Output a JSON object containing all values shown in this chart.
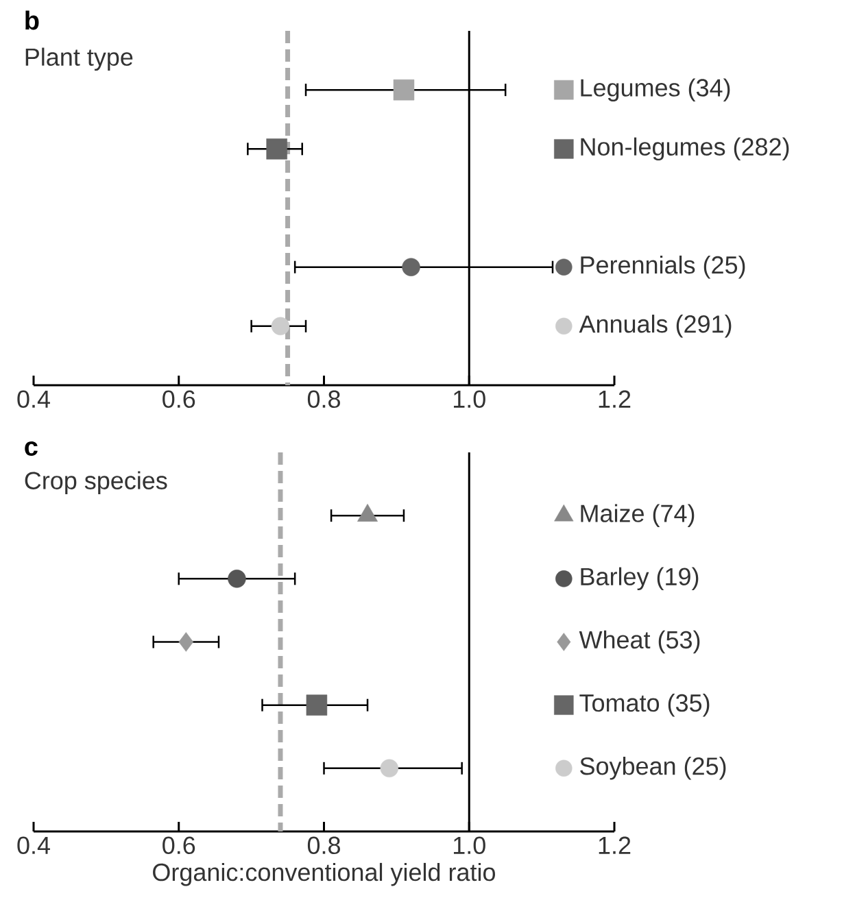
{
  "chart_data": [
    {
      "type": "scatter",
      "orientation": "horizontal",
      "title": "b",
      "subtitle": "Plant type",
      "categories": [
        null,
        null,
        null,
        null,
        null
      ],
      "xlim": [
        0.4,
        1.2
      ],
      "xticks": [
        0.4,
        0.6,
        0.8,
        {
          "value": 1,
          "label": "1.0"
        },
        1.2
      ],
      "tick_labels": "x",
      "legend": "right",
      "ref_lines": [
        {
          "axis": "x",
          "value": 0.75,
          "color": "#aaaaaa",
          "line_style": "dashed"
        },
        {
          "axis": "x",
          "value": 1,
          "color": "#000000",
          "line_style": "solid"
        }
      ],
      "series": [
        {
          "name": "Legumes (34)",
          "color": "#a6a6a6",
          "marker": "square",
          "values": [
            0.91,
            null,
            null,
            null,
            null
          ],
          "errors": [
            [
              0.775,
              1.05
            ],
            null,
            null,
            null,
            null
          ]
        },
        {
          "name": "Non-legumes (282)",
          "color": "#666666",
          "marker": "square",
          "values": [
            null,
            0.735,
            null,
            null,
            null
          ],
          "errors": [
            null,
            [
              0.695,
              0.77
            ],
            null,
            null,
            null
          ]
        },
        {
          "name": "Perennials (25)",
          "color": "#666666",
          "marker": "circle",
          "values": [
            null,
            null,
            null,
            0.92,
            null
          ],
          "errors": [
            null,
            null,
            null,
            [
              0.76,
              1.115
            ],
            null
          ]
        },
        {
          "name": "Annuals (291)",
          "color": "#cccccc",
          "marker": "circle",
          "values": [
            null,
            null,
            null,
            null,
            0.74
          ],
          "errors": [
            null,
            null,
            null,
            null,
            [
              0.7,
              0.775
            ]
          ]
        }
      ]
    },
    {
      "type": "scatter",
      "orientation": "horizontal",
      "title": "c",
      "subtitle": "Crop species",
      "xlabel": "Organic:conventional yield ratio",
      "categories": [
        null,
        null,
        null,
        null,
        null
      ],
      "xlim": [
        0.4,
        1.2
      ],
      "xticks": [
        0.4,
        0.6,
        0.8,
        {
          "value": 1,
          "label": "1.0"
        },
        1.2
      ],
      "tick_labels": "x",
      "legend": "right",
      "ref_lines": [
        {
          "axis": "x",
          "value": 0.74,
          "color": "#aaaaaa",
          "line_style": "dashed"
        },
        {
          "axis": "x",
          "value": 1,
          "color": "#000000",
          "line_style": "solid"
        }
      ],
      "series": [
        {
          "name": "Maize (74)",
          "color": "#888888",
          "marker": "triangle",
          "values": [
            0.86,
            null,
            null,
            null,
            null
          ],
          "errors": [
            [
              0.81,
              0.91
            ],
            null,
            null,
            null,
            null
          ]
        },
        {
          "name": "Barley (19)",
          "color": "#555555",
          "marker": "circle",
          "values": [
            null,
            0.68,
            null,
            null,
            null
          ],
          "errors": [
            null,
            [
              0.6,
              0.76
            ],
            null,
            null,
            null
          ]
        },
        {
          "name": "Wheat (53)",
          "color": "#999999",
          "marker": "diamond",
          "values": [
            null,
            null,
            0.61,
            null,
            null
          ],
          "errors": [
            null,
            null,
            [
              0.565,
              0.655
            ],
            null,
            null
          ]
        },
        {
          "name": "Tomato (35)",
          "color": "#666666",
          "marker": "square",
          "values": [
            null,
            null,
            null,
            0.79,
            null
          ],
          "errors": [
            null,
            null,
            null,
            [
              0.715,
              0.86
            ],
            null
          ]
        },
        {
          "name": "Soybean (25)",
          "color": "#cccccc",
          "marker": "circle",
          "values": [
            null,
            null,
            null,
            null,
            0.89
          ],
          "errors": [
            null,
            null,
            null,
            null,
            [
              0.8,
              0.99
            ]
          ]
        }
      ]
    }
  ]
}
